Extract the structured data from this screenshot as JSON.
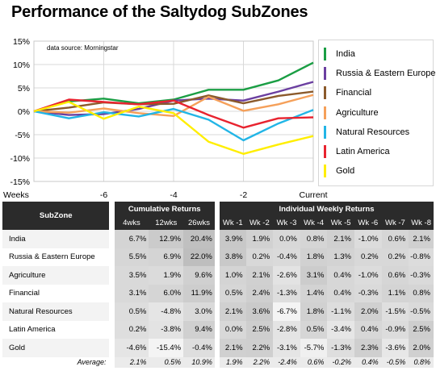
{
  "title": "Performance of the Saltydog SubZones",
  "chart_data": {
    "type": "line",
    "annotation": "data source: Morningstar",
    "x": [
      -8,
      -7,
      -6,
      -5,
      -4,
      -3,
      -2,
      -1,
      0
    ],
    "x_ticks": [
      {
        "value": -8,
        "label": "Weeks"
      },
      {
        "value": -6,
        "label": "-6"
      },
      {
        "value": -4,
        "label": "-4"
      },
      {
        "value": -2,
        "label": "-2"
      },
      {
        "value": 0,
        "label": "Current"
      }
    ],
    "y_ticks": [
      "15%",
      "10%",
      "5%",
      "0%",
      "-5%",
      "-10%",
      "-15%"
    ],
    "ylim": [
      -15,
      15
    ],
    "grid": true,
    "legend_position": "right",
    "series": [
      {
        "name": "India",
        "color": "#1a9e44",
        "values": [
          0,
          2.1,
          2.7,
          1.7,
          2.5,
          4.6,
          4.6,
          6.6,
          10.4
        ]
      },
      {
        "name": "Russia & Eastern Europe",
        "color": "#6b3fa0",
        "values": [
          0,
          -0.8,
          -0.6,
          0.5,
          2.3,
          2.7,
          2.3,
          4.2,
          6.3
        ]
      },
      {
        "name": "Financial",
        "color": "#8b5a2b",
        "values": [
          0,
          0.8,
          1.9,
          1.5,
          1.6,
          3.4,
          1.7,
          3.3,
          4.2
        ]
      },
      {
        "name": "Agriculture",
        "color": "#f5a05a",
        "values": [
          0,
          -0.3,
          0.6,
          -0.4,
          -1.0,
          3.1,
          0.1,
          1.5,
          3.5
        ]
      },
      {
        "name": "Natural Resources",
        "color": "#22b5e6",
        "values": [
          0,
          -1.5,
          -0.2,
          -1.1,
          0.5,
          -1.8,
          -6.2,
          -2.6,
          0.3
        ]
      },
      {
        "name": "Latin America",
        "color": "#e8232f",
        "values": [
          0,
          2.5,
          2.0,
          1.5,
          2.3,
          -0.8,
          -3.5,
          -1.5,
          -1.3
        ]
      },
      {
        "name": "Gold",
        "color": "#ffee00",
        "values": [
          0,
          2.0,
          -1.6,
          1.0,
          -0.4,
          -6.5,
          -9.1,
          -7.1,
          -5.3
        ]
      }
    ]
  },
  "table": {
    "subzone_header": "SubZone",
    "cum_header": "Cumulative Returns",
    "weekly_header": "Individual Weekly Returns",
    "cum_cols": [
      "4wks",
      "12wks",
      "26wks"
    ],
    "week_cols": [
      "Wk -1",
      "Wk -2",
      "Wk -3",
      "Wk -4",
      "Wk -5",
      "Wk -6",
      "Wk -7",
      "Wk -8"
    ],
    "rows": [
      {
        "name": "India",
        "cum": [
          "6.7%",
          "12.9%",
          "20.4%"
        ],
        "weeks": [
          "3.9%",
          "1.9%",
          "0.0%",
          "0.8%",
          "2.1%",
          "-1.0%",
          "0.6%",
          "2.1%"
        ]
      },
      {
        "name": "Russia & Eastern Europe",
        "cum": [
          "5.5%",
          "6.9%",
          "22.0%"
        ],
        "weeks": [
          "3.8%",
          "0.2%",
          "-0.4%",
          "1.8%",
          "1.3%",
          "0.2%",
          "0.2%",
          "-0.8%"
        ]
      },
      {
        "name": "Agriculture",
        "cum": [
          "3.5%",
          "1.9%",
          "9.6%"
        ],
        "weeks": [
          "1.0%",
          "2.1%",
          "-2.6%",
          "3.1%",
          "0.4%",
          "-1.0%",
          "0.6%",
          "-0.3%"
        ]
      },
      {
        "name": "Financial",
        "cum": [
          "3.1%",
          "6.0%",
          "11.9%"
        ],
        "weeks": [
          "0.5%",
          "2.4%",
          "-1.3%",
          "1.4%",
          "0.4%",
          "-0.3%",
          "1.1%",
          "0.8%"
        ]
      },
      {
        "name": "Natural Resources",
        "cum": [
          "0.5%",
          "-4.8%",
          "3.0%"
        ],
        "weeks": [
          "2.1%",
          "3.6%",
          "-6.7%",
          "1.8%",
          "-1.1%",
          "2.0%",
          "-1.5%",
          "-0.5%"
        ]
      },
      {
        "name": "Latin America",
        "cum": [
          "0.2%",
          "-3.8%",
          "9.4%"
        ],
        "weeks": [
          "0.0%",
          "2.5%",
          "-2.8%",
          "0.5%",
          "-3.4%",
          "0.4%",
          "-0.9%",
          "2.5%"
        ]
      },
      {
        "name": "Gold",
        "cum": [
          "-4.6%",
          "-15.4%",
          "-0.4%"
        ],
        "weeks": [
          "2.1%",
          "2.2%",
          "-3.1%",
          "-5.7%",
          "-1.3%",
          "2.3%",
          "-3.6%",
          "2.0%"
        ]
      }
    ],
    "average": {
      "label": "Average:",
      "cum": [
        "2.1%",
        "0.5%",
        "10.9%"
      ],
      "weeks": [
        "1.9%",
        "2.2%",
        "-2.4%",
        "0.6%",
        "-0.2%",
        "0.4%",
        "-0.5%",
        "0.8%"
      ]
    }
  }
}
